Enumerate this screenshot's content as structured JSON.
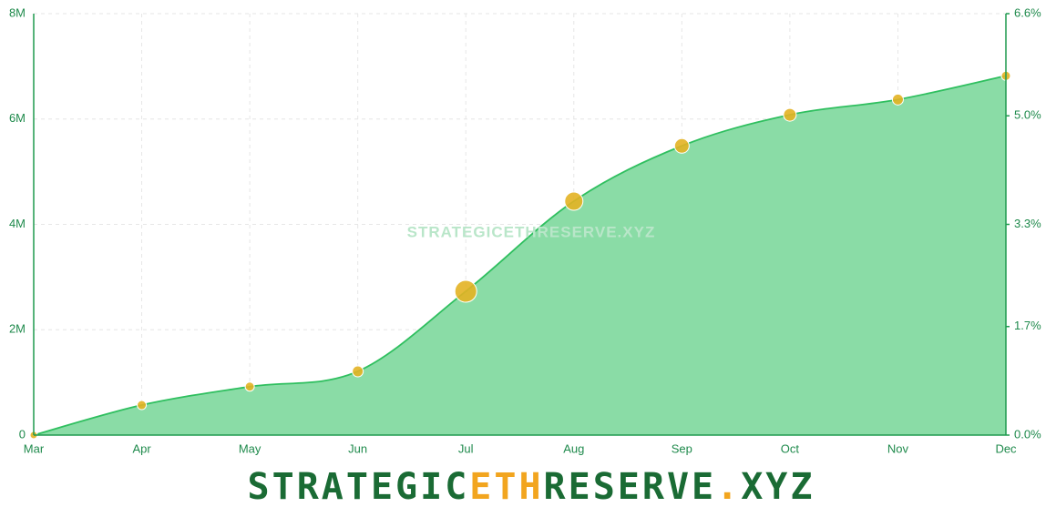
{
  "chart_data": {
    "type": "area",
    "categories": [
      "Mar",
      "Apr",
      "May",
      "Jun",
      "Jul",
      "Aug",
      "Sep",
      "Oct",
      "Nov",
      "Dec"
    ],
    "series": [
      {
        "color": "#2fbf5f",
        "fill": "#8adca6",
        "point_color": "#e3b324",
        "values": [
          0,
          570000,
          920000,
          1210000,
          2730000,
          4440000,
          5490000,
          6080000,
          6370000,
          6820000
        ],
        "sizes": [
          4,
          5,
          5,
          6,
          12,
          10,
          8,
          7,
          6,
          5
        ]
      }
    ],
    "ylim": [
      0,
      8000000
    ],
    "yticks": [
      0,
      {
        "value": 2000000,
        "label": "2M"
      },
      {
        "value": 4000000,
        "label": "4M"
      },
      {
        "value": 6000000,
        "label": "6M"
      },
      {
        "value": 8000000,
        "label": "8M"
      }
    ],
    "y2lim": [
      0,
      6.6
    ],
    "y2ticks": [
      {
        "value": 0,
        "label": "0.0%"
      },
      {
        "value": 1.7,
        "label": "1.7%"
      },
      {
        "value": 3.3,
        "label": "3.3%"
      },
      {
        "value": 5.0,
        "label": "5.0%"
      },
      {
        "value": 6.6,
        "label": "6.6%"
      }
    ],
    "grid": true,
    "watermark": "STRATEGICETHRESERVE.XYZ"
  },
  "logo": [
    {
      "text": "STRATEGIC",
      "color": "#1a6b34"
    },
    {
      "text": "ETH",
      "color": "#f2a51f"
    },
    {
      "text": "RESERVE",
      "color": "#1a6b34"
    },
    {
      "text": ".",
      "color": "#f2a51f"
    },
    {
      "text": "XYZ",
      "color": "#1a6b34"
    }
  ]
}
